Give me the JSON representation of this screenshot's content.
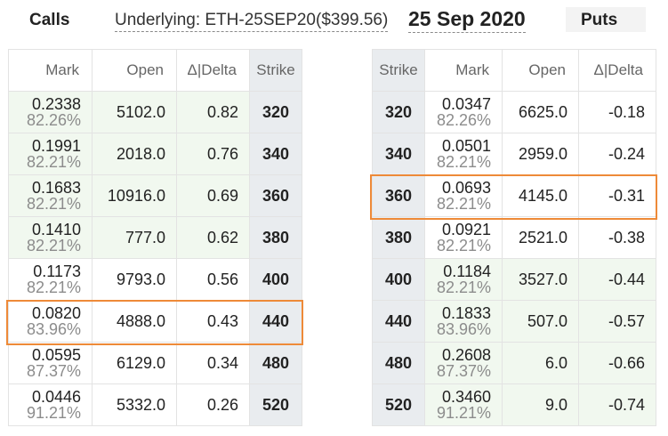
{
  "header": {
    "calls_label": "Calls",
    "underlying_label": "Underlying: ETH-25SEP20($399.56)",
    "expiry_date": "25 Sep 2020",
    "puts_label": "Puts"
  },
  "calls": {
    "columns": [
      "Mark",
      "Open",
      "Δ|Delta",
      "Strike"
    ],
    "rows": [
      {
        "mark": "0.2338",
        "iv": "82.26%",
        "open": "5102.0",
        "delta": "0.82",
        "strike": "320"
      },
      {
        "mark": "0.1991",
        "iv": "82.21%",
        "open": "2018.0",
        "delta": "0.76",
        "strike": "340"
      },
      {
        "mark": "0.1683",
        "iv": "82.21%",
        "open": "10916.0",
        "delta": "0.69",
        "strike": "360"
      },
      {
        "mark": "0.1410",
        "iv": "82.21%",
        "open": "777.0",
        "delta": "0.62",
        "strike": "380"
      },
      {
        "mark": "0.1173",
        "iv": "82.21%",
        "open": "9793.0",
        "delta": "0.56",
        "strike": "400"
      },
      {
        "mark": "0.0820",
        "iv": "83.96%",
        "open": "4888.0",
        "delta": "0.43",
        "strike": "440"
      },
      {
        "mark": "0.0595",
        "iv": "87.37%",
        "open": "6129.0",
        "delta": "0.34",
        "strike": "480"
      },
      {
        "mark": "0.0446",
        "iv": "91.21%",
        "open": "5332.0",
        "delta": "0.26",
        "strike": "520"
      }
    ]
  },
  "puts": {
    "columns": [
      "Strike",
      "Mark",
      "Open",
      "Δ|Delta"
    ],
    "rows": [
      {
        "mark": "0.0347",
        "iv": "82.26%",
        "open": "6625.0",
        "delta": "-0.18",
        "strike": "320"
      },
      {
        "mark": "0.0501",
        "iv": "82.21%",
        "open": "2959.0",
        "delta": "-0.24",
        "strike": "340"
      },
      {
        "mark": "0.0693",
        "iv": "82.21%",
        "open": "4145.0",
        "delta": "-0.31",
        "strike": "360"
      },
      {
        "mark": "0.0921",
        "iv": "82.21%",
        "open": "2521.0",
        "delta": "-0.38",
        "strike": "380"
      },
      {
        "mark": "0.1184",
        "iv": "82.21%",
        "open": "3527.0",
        "delta": "-0.44",
        "strike": "400"
      },
      {
        "mark": "0.1833",
        "iv": "83.96%",
        "open": "507.0",
        "delta": "-0.57",
        "strike": "440"
      },
      {
        "mark": "0.2608",
        "iv": "87.37%",
        "open": "6.0",
        "delta": "-0.66",
        "strike": "480"
      },
      {
        "mark": "0.3460",
        "iv": "91.21%",
        "open": "9.0",
        "delta": "-0.74",
        "strike": "520"
      }
    ]
  },
  "colors": {
    "highlight": "#ee8a38",
    "in_the_money": "#f1f8ef",
    "strike_column": "#e9ecef"
  }
}
